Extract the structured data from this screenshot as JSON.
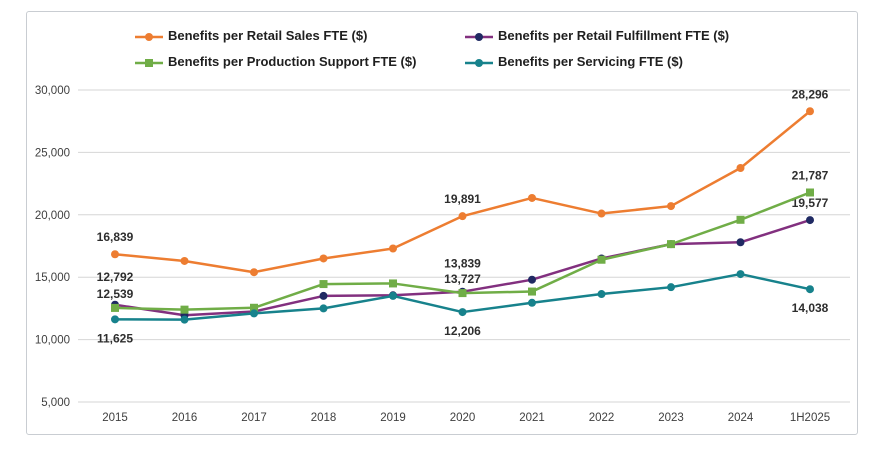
{
  "chart_data": {
    "type": "line",
    "categories": [
      "2015",
      "2016",
      "2017",
      "2018",
      "2019",
      "2020",
      "2021",
      "2022",
      "2023",
      "2024",
      "1H2025"
    ],
    "y_axis": {
      "min": 5000,
      "max": 30000,
      "step": 5000,
      "tick_labels": [
        "5,000",
        "10,000",
        "15,000",
        "20,000",
        "25,000",
        "30,000"
      ]
    },
    "grid": "horizontal-only",
    "legend_position": "top",
    "colors": {
      "retail_sales": "#ED7D31",
      "retail_fulfillment_line": "#82307F",
      "retail_fulfillment_marker": "#202A63",
      "production_support": "#70AD47",
      "servicing": "#17828C",
      "gridline": "#d6d6d6",
      "axis_text": "#3f3f3f"
    },
    "series": [
      {
        "name": "Benefits per Retail Sales FTE ($)",
        "color": "#ED7D31",
        "marker": "circle",
        "marker_color": "#ED7D31",
        "values": [
          16839,
          16300,
          15400,
          16500,
          17300,
          19891,
          21350,
          20100,
          20700,
          23750,
          28296
        ],
        "data_labels": [
          {
            "index": 0,
            "text": "16,839",
            "position": "above",
            "offset": 17
          },
          {
            "index": 5,
            "text": "19,891",
            "position": "above",
            "offset": 17
          },
          {
            "index": 10,
            "text": "28,296",
            "position": "above",
            "offset": 17
          }
        ]
      },
      {
        "name": "Benefits per Retail Fulfillment FTE ($)",
        "color": "#82307F",
        "marker": "circle",
        "marker_color": "#202A63",
        "values": [
          12792,
          11950,
          12250,
          13500,
          13550,
          13839,
          14800,
          16500,
          17650,
          17800,
          19577
        ],
        "data_labels": [
          {
            "index": 0,
            "text": "12,792",
            "position": "above",
            "offset": 28
          },
          {
            "index": 5,
            "text": "13,839",
            "position": "above",
            "offset": 28
          },
          {
            "index": 10,
            "text": "19,577",
            "position": "above",
            "offset": 17
          }
        ]
      },
      {
        "name": "Benefits per Production Support FTE ($)",
        "color": "#70AD47",
        "marker": "square",
        "marker_color": "#70AD47",
        "values": [
          12539,
          12400,
          12550,
          14450,
          14500,
          13727,
          13850,
          16400,
          17650,
          19600,
          21787
        ],
        "data_labels": [
          {
            "index": 0,
            "text": "12,539",
            "position": "above",
            "offset": 14
          },
          {
            "index": 5,
            "text": "13,727",
            "position": "above",
            "offset": 14
          },
          {
            "index": 10,
            "text": "21,787",
            "position": "above",
            "offset": 17
          }
        ]
      },
      {
        "name": "Benefits per Servicing FTE ($)",
        "color": "#17828C",
        "marker": "circle",
        "marker_color": "#17828C",
        "values": [
          11625,
          11600,
          12100,
          12500,
          13500,
          12206,
          12950,
          13650,
          14200,
          15250,
          14038
        ],
        "data_labels": [
          {
            "index": 0,
            "text": "11,625",
            "position": "below",
            "offset": 18
          },
          {
            "index": 5,
            "text": "12,206",
            "position": "below",
            "offset": 18
          },
          {
            "index": 10,
            "text": "14,038",
            "position": "below",
            "offset": 18
          }
        ]
      }
    ]
  }
}
